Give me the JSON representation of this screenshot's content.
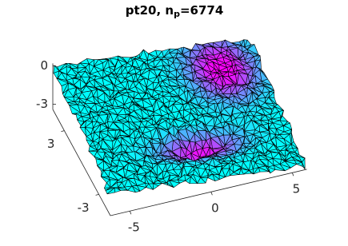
{
  "chart_data": {
    "type": "surface3d",
    "title": [
      "pt20, n",
      "p",
      "=6774"
    ],
    "xlim": [
      -6.2,
      5.9
    ],
    "ylim": [
      -5,
      5
    ],
    "zlim": [
      -3.4,
      0.2
    ],
    "xticks": [
      -5,
      0,
      5
    ],
    "yticks": [
      -3,
      3
    ],
    "zticks": [
      -3,
      0
    ]
  }
}
